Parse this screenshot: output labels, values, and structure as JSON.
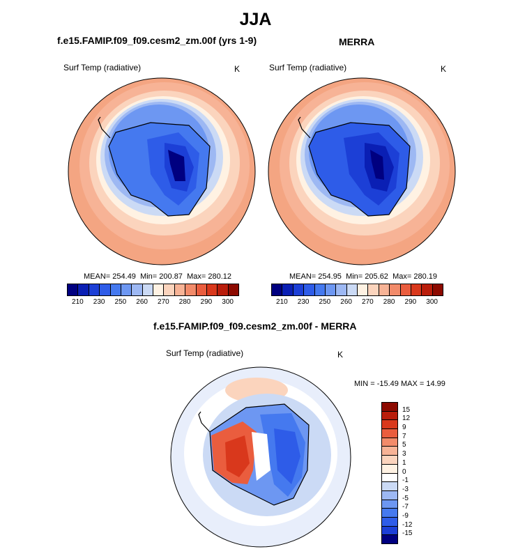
{
  "title": "JJA",
  "panels": [
    {
      "title": "f.e15.FAMIP.f09_f09.cesm2_zm.00f (yrs 1-9)",
      "variable": "Surf Temp (radiative)",
      "units": "K",
      "mean": "254.49",
      "min": "200.87",
      "max": "280.12"
    },
    {
      "title": "MERRA",
      "variable": "Surf Temp (radiative)",
      "units": "K",
      "mean": "254.95",
      "min": "205.62",
      "max": "280.19"
    }
  ],
  "diff_panel": {
    "title": "f.e15.FAMIP.f09_f09.cesm2_zm.00f - MERRA",
    "variable": "Surf Temp (radiative)",
    "units": "K",
    "min": "-15.49",
    "max": "14.99"
  },
  "labels": {
    "mean": "MEAN=",
    "min": "Min=",
    "max": "Max=",
    "dmin": "MIN =",
    "dmax": "MAX ="
  },
  "chart_data": [
    {
      "type": "heatmap",
      "title": "f.e15.FAMIP.f09_f09.cesm2_zm.00f (yrs 1-9)",
      "projection": "south-polar-stereographic",
      "variable": "Surf Temp (radiative)",
      "units": "K",
      "colorbar_ticks": [
        "210",
        "230",
        "250",
        "260",
        "270",
        "280",
        "290",
        "300"
      ],
      "colorbar_levels": 16,
      "stats": {
        "mean": 254.49,
        "min": 200.87,
        "max": 280.12
      }
    },
    {
      "type": "heatmap",
      "title": "MERRA",
      "projection": "south-polar-stereographic",
      "variable": "Surf Temp (radiative)",
      "units": "K",
      "colorbar_ticks": [
        "210",
        "230",
        "250",
        "260",
        "270",
        "280",
        "290",
        "300"
      ],
      "colorbar_levels": 16,
      "stats": {
        "mean": 254.95,
        "min": 205.62,
        "max": 280.19
      }
    },
    {
      "type": "heatmap",
      "title": "f.e15.FAMIP.f09_f09.cesm2_zm.00f - MERRA",
      "projection": "south-polar-stereographic",
      "variable": "Surf Temp (radiative)",
      "units": "K",
      "colorbar_ticks": [
        "15",
        "12",
        "9",
        "7",
        "5",
        "3",
        "1",
        "0",
        "-1",
        "-3",
        "-5",
        "-7",
        "-9",
        "-12",
        "-15"
      ],
      "stats": {
        "min": -15.49,
        "max": 14.99
      }
    }
  ],
  "colors": {
    "abs_scale": [
      "#000080",
      "#0a1fb4",
      "#1c3fd6",
      "#2e5ce8",
      "#4579ef",
      "#6d97f2",
      "#9db8f3",
      "#cbdaf5",
      "#fff2e3",
      "#fbd4bd",
      "#f7b396",
      "#f28b6a",
      "#ea5d3e",
      "#d9381c",
      "#b91d0b",
      "#8c0a00"
    ],
    "diff_scale": [
      "#8c0a00",
      "#b91d0b",
      "#d9381c",
      "#ea5d3e",
      "#f28b6a",
      "#f7b396",
      "#fbd4bd",
      "#fff2e3",
      "#ffffff",
      "#cbdaf5",
      "#9db8f3",
      "#6d97f2",
      "#4579ef",
      "#2e5ce8",
      "#1c3fd6",
      "#000080"
    ]
  }
}
